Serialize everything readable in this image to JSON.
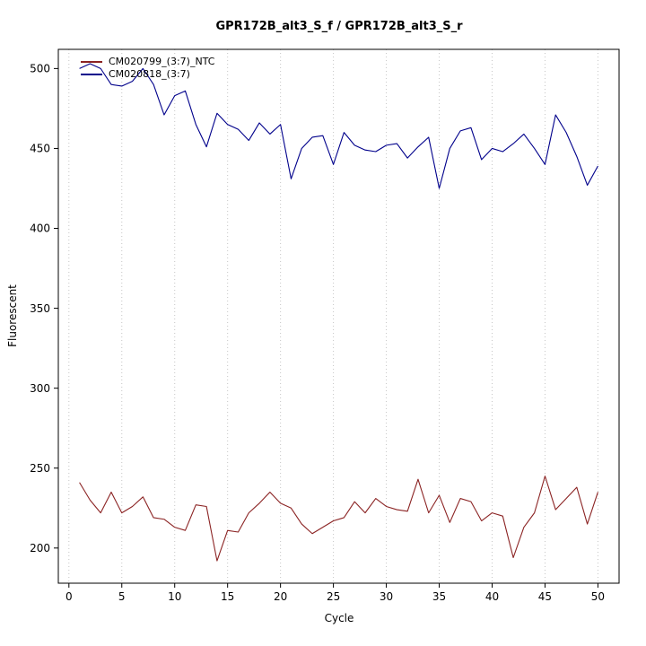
{
  "title": "GPR172B_alt3_S_f / GPR172B_alt3_S_r",
  "chart_data": {
    "type": "line",
    "title": "GPR172B_alt3_S_f / GPR172B_alt3_S_r",
    "xlabel": "Cycle",
    "ylabel": "Fluorescent",
    "xlim": [
      -1,
      52
    ],
    "ylim": [
      178,
      512
    ],
    "xticks": [
      0,
      5,
      10,
      15,
      20,
      25,
      30,
      35,
      40,
      45,
      50
    ],
    "yticks": [
      200,
      250,
      300,
      350,
      400,
      450,
      500
    ],
    "grid": "vertical-dotted",
    "legend_position": "top-left",
    "x": [
      1,
      2,
      3,
      4,
      5,
      6,
      7,
      8,
      9,
      10,
      11,
      12,
      13,
      14,
      15,
      16,
      17,
      18,
      19,
      20,
      21,
      22,
      23,
      24,
      25,
      26,
      27,
      28,
      29,
      30,
      31,
      32,
      33,
      34,
      35,
      36,
      37,
      38,
      39,
      40,
      41,
      42,
      43,
      44,
      45,
      46,
      47,
      48,
      49,
      50
    ],
    "series": [
      {
        "name": "CM020799_(3:7)_NTC",
        "color": "#8B2323",
        "values": [
          241,
          230,
          222,
          235,
          222,
          226,
          232,
          219,
          218,
          213,
          211,
          227,
          226,
          192,
          211,
          210,
          222,
          228,
          235,
          228,
          225,
          215,
          209,
          213,
          217,
          219,
          229,
          222,
          231,
          226,
          224,
          223,
          243,
          222,
          233,
          216,
          231,
          229,
          217,
          222,
          220,
          194,
          213,
          222,
          245,
          224,
          231,
          238,
          215,
          235
        ]
      },
      {
        "name": "CM020818_(3:7)",
        "color": "#00008B",
        "values": [
          500,
          503,
          500,
          490,
          489,
          492,
          500,
          490,
          471,
          483,
          486,
          465,
          451,
          472,
          465,
          462,
          455,
          466,
          459,
          465,
          431,
          450,
          457,
          458,
          440,
          460,
          452,
          449,
          448,
          452,
          453,
          444,
          451,
          457,
          425,
          450,
          461,
          463,
          443,
          450,
          448,
          453,
          459,
          450,
          440,
          471,
          460,
          445,
          427,
          439
        ]
      }
    ]
  }
}
